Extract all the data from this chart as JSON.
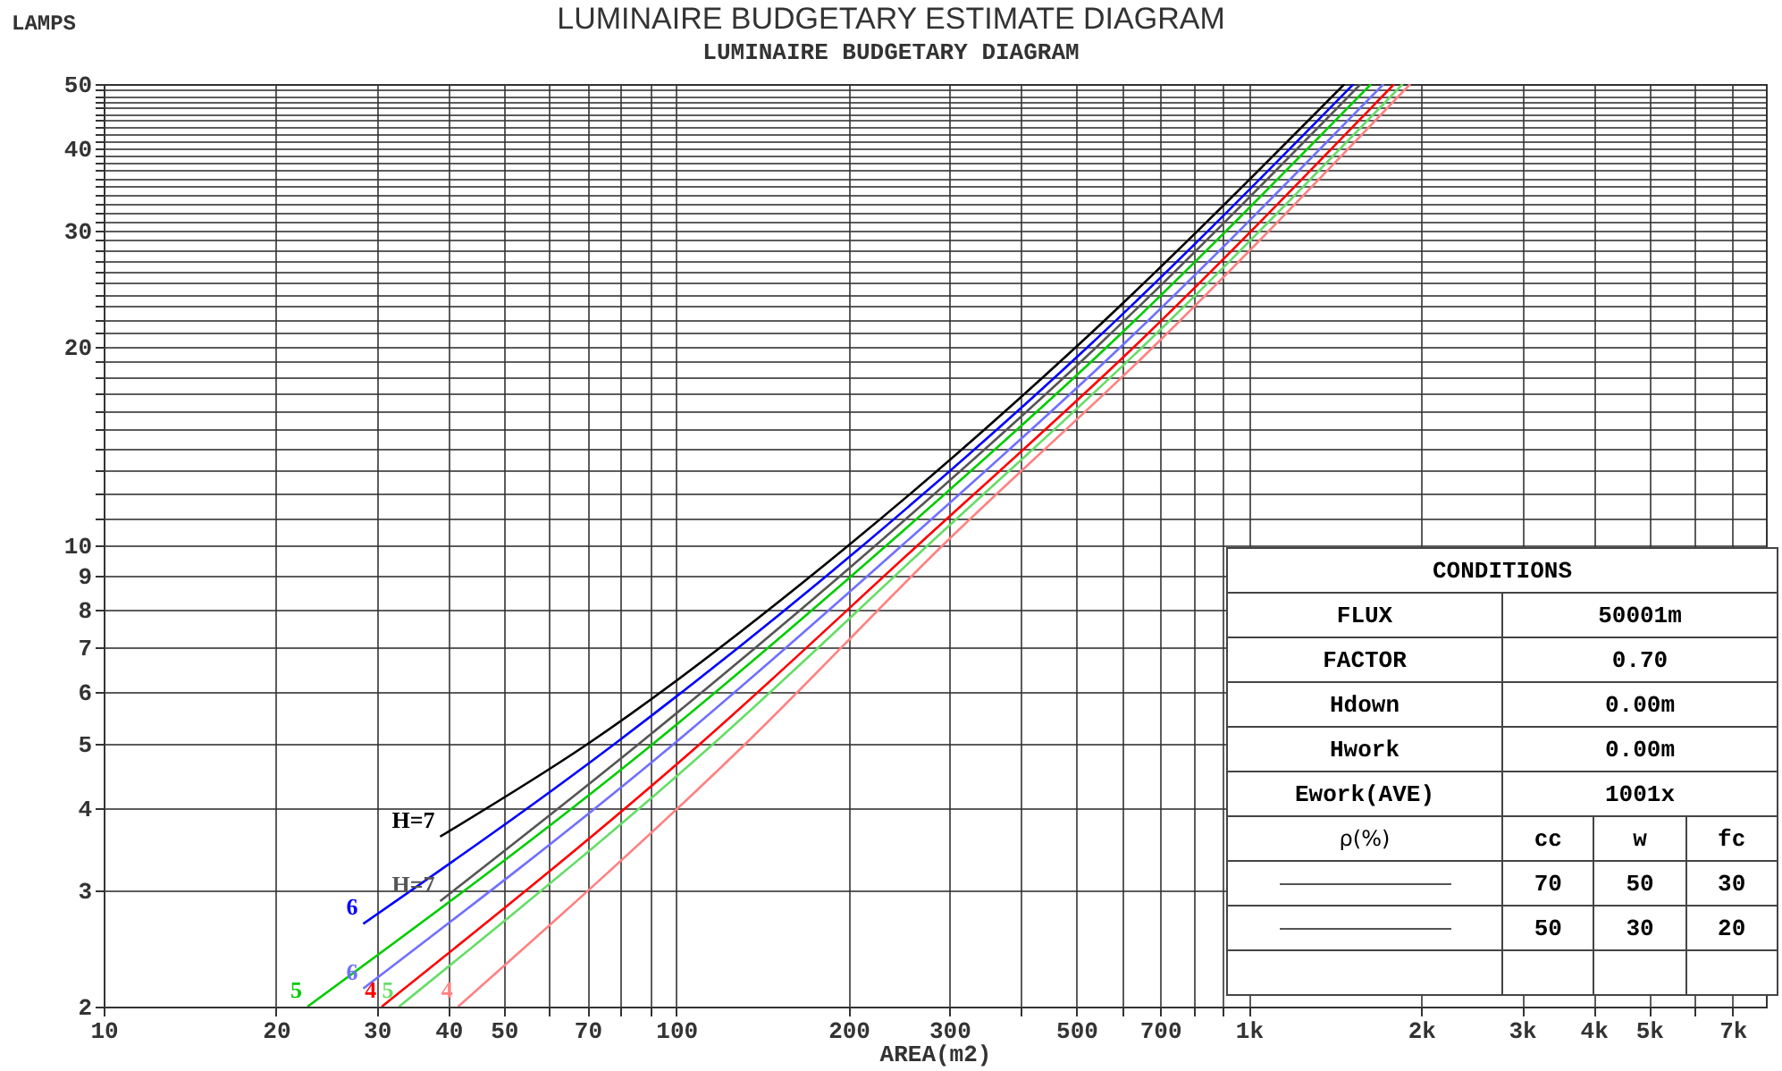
{
  "chart_data": {
    "type": "line",
    "title": "LUMINAIRE BUDGETARY ESTIMATE DIAGRAM",
    "subtitle": "LUMINAIRE BUDGETARY DIAGRAM",
    "xlabel": "AREA(m2)",
    "ylabel": "LAMPS",
    "log": "xy",
    "grid": true,
    "legend": false,
    "marker": "none",
    "line_style": "solid",
    "xlim": [
      10,
      8000
    ],
    "ylim": [
      2,
      50
    ],
    "xticks": [
      10,
      20,
      30,
      40,
      50,
      {
        "value": 60,
        "label": null
      },
      70,
      {
        "value": 80,
        "label": null
      },
      {
        "value": 90,
        "label": null
      },
      100,
      200,
      300,
      {
        "value": 400,
        "label": null
      },
      500,
      {
        "value": 600,
        "label": null
      },
      700,
      {
        "value": 800,
        "label": null
      },
      {
        "value": 900,
        "label": null
      },
      {
        "value": 1000,
        "label": "1k"
      },
      {
        "value": 2000,
        "label": "2k"
      },
      {
        "value": 3000,
        "label": "3k"
      },
      {
        "value": 4000,
        "label": "4k"
      },
      {
        "value": 5000,
        "label": "5k"
      },
      {
        "value": 6000,
        "label": null
      },
      {
        "value": 7000,
        "label": "7k"
      }
    ],
    "yticks": [
      2,
      3,
      4,
      5,
      6,
      7,
      8,
      9,
      10,
      {
        "value": 11,
        "label": null
      },
      {
        "value": 12,
        "label": null
      },
      {
        "value": 13,
        "label": null
      },
      {
        "value": 14,
        "label": null
      },
      {
        "value": 15,
        "label": null
      },
      {
        "value": 16,
        "label": null
      },
      {
        "value": 17,
        "label": null
      },
      {
        "value": 18,
        "label": null
      },
      {
        "value": 19,
        "label": null
      },
      20,
      {
        "value": 21,
        "label": null
      },
      {
        "value": 22,
        "label": null
      },
      {
        "value": 23,
        "label": null
      },
      {
        "value": 24,
        "label": null
      },
      {
        "value": 25,
        "label": null
      },
      {
        "value": 26,
        "label": null
      },
      {
        "value": 27,
        "label": null
      },
      {
        "value": 28,
        "label": null
      },
      {
        "value": 29,
        "label": null
      },
      30,
      {
        "value": 31,
        "label": null
      },
      {
        "value": 32,
        "label": null
      },
      {
        "value": 33,
        "label": null
      },
      {
        "value": 34,
        "label": null
      },
      {
        "value": 35,
        "label": null
      },
      {
        "value": 36,
        "label": null
      },
      {
        "value": 37,
        "label": null
      },
      {
        "value": 38,
        "label": null
      },
      {
        "value": 39,
        "label": null
      },
      40,
      {
        "value": 41,
        "label": null
      },
      {
        "value": 42,
        "label": null
      },
      {
        "value": 43,
        "label": null
      },
      {
        "value": 44,
        "label": null
      },
      {
        "value": 45,
        "label": null
      },
      {
        "value": 46,
        "label": null
      },
      {
        "value": 47,
        "label": null
      },
      {
        "value": 48,
        "label": null
      },
      {
        "value": 49,
        "label": null
      },
      50
    ],
    "series": [
      {
        "color": "#000000",
        "x": [
          38.7,
          70,
          200,
          500,
          1469
        ],
        "values": [
          3.62,
          5,
          10,
          20,
          50
        ]
      },
      {
        "color": "#0000ff",
        "x": [
          28.4,
          78,
          212,
          524,
          1524
        ],
        "values": [
          2.67,
          5,
          10,
          20,
          50
        ]
      },
      {
        "color": "#555555",
        "x": [
          38.7,
          86,
          223,
          543,
          1568
        ],
        "values": [
          2.89,
          5,
          10,
          20,
          50
        ]
      },
      {
        "color": "#00cc00",
        "x": [
          22.7,
          91,
          233,
          566,
          1635
        ],
        "values": [
          2,
          5,
          10,
          20,
          50
        ]
      },
      {
        "color": "#7070ff",
        "x": [
          28.4,
          99,
          248,
          598,
          1719
        ],
        "values": [
          2.13,
          5,
          10,
          20,
          50
        ]
      },
      {
        "color": "#ff0000",
        "x": [
          30.6,
          110,
          264,
          631,
          1794
        ],
        "values": [
          2,
          5,
          10,
          20,
          50
        ]
      },
      {
        "color": "#66dd66",
        "x": [
          32.8,
          116,
          275,
          653,
          1857
        ],
        "values": [
          2,
          5,
          10,
          20,
          50
        ]
      },
      {
        "color": "#ff8080",
        "x": [
          41.6,
          132,
          292,
          682,
          1914
        ],
        "values": [
          2,
          5,
          10,
          20,
          50
        ]
      }
    ],
    "annotations": [
      {
        "text": "H=7",
        "x": 38.7,
        "y": 3.62
      },
      {
        "text": "6",
        "x": 28.4,
        "y": 2.67
      },
      {
        "text": "H=7",
        "x": 38.7,
        "y": 2.89
      },
      {
        "text": "5",
        "x": 22.7,
        "y": 2
      },
      {
        "text": "6",
        "x": 28.4,
        "y": 2.13
      },
      {
        "text": "4",
        "x": 30.6,
        "y": 2
      },
      {
        "text": "5",
        "x": 32.8,
        "y": 2
      },
      {
        "text": "4",
        "x": 41.6,
        "y": 2
      },
      "CONDITIONS",
      "FLUX",
      "50001m",
      "FACTOR",
      "0.70",
      "Hdown",
      "0.00m",
      "Hwork",
      "0.00m",
      "Ework(AVE)",
      "1001x",
      "ρ(%)",
      "cc",
      "w",
      "fc",
      "70",
      "50",
      "30",
      "50",
      "30",
      "20"
    ]
  }
}
